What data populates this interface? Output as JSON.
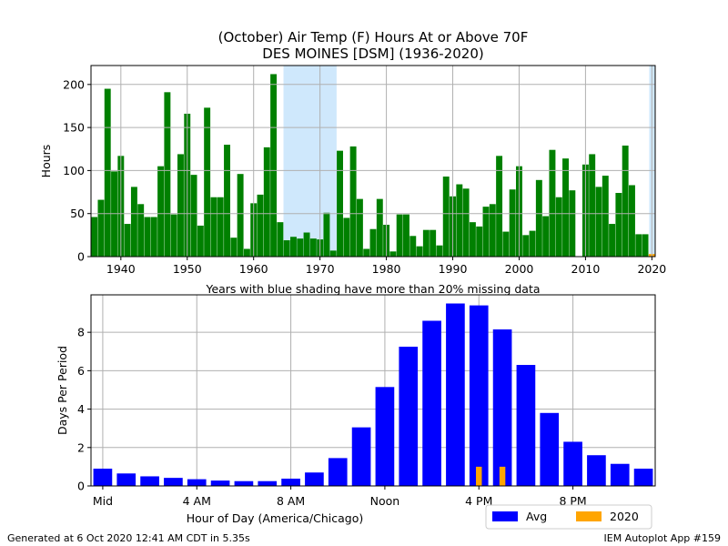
{
  "title_line1": "(October) Air Temp (F) Hours At or Above 70F",
  "title_line2": "DES MOINES [DSM] (1936-2020)",
  "footer_left": "Generated at 6 Oct 2020 12:41 AM CDT in 5.35s",
  "footer_right": "IEM Autoplot App #159",
  "colors": {
    "yearly_bar": "#008000",
    "missing_shade": "#cfe8fc",
    "avg_bar": "#0000ff",
    "current_bar": "#ffa500",
    "grid": "#b0b0b0"
  },
  "chart_data": [
    {
      "type": "bar",
      "title": "(October) Air Temp (F) Hours At or Above 70F",
      "subtitle": "DES MOINES [DSM] (1936-2020)",
      "xlabel": "Years with blue shading have more than 20% missing data",
      "ylabel": "Hours",
      "xlim": [
        1935.5,
        2020.5
      ],
      "ylim": [
        0,
        222
      ],
      "xticks": [
        1940,
        1950,
        1960,
        1970,
        1980,
        1990,
        2000,
        2010,
        2020
      ],
      "yticks": [
        0,
        50,
        100,
        150,
        200
      ],
      "grid": true,
      "missing_shading": [
        [
          1964.5,
          1972.5
        ],
        [
          2019.6,
          2020.5
        ]
      ],
      "x": [
        1936,
        1937,
        1938,
        1939,
        1940,
        1941,
        1942,
        1943,
        1944,
        1945,
        1946,
        1947,
        1948,
        1949,
        1950,
        1951,
        1952,
        1953,
        1954,
        1955,
        1956,
        1957,
        1958,
        1959,
        1960,
        1961,
        1962,
        1963,
        1964,
        1965,
        1966,
        1967,
        1968,
        1969,
        1970,
        1971,
        1972,
        1973,
        1974,
        1975,
        1976,
        1977,
        1978,
        1979,
        1980,
        1981,
        1982,
        1983,
        1984,
        1985,
        1986,
        1987,
        1988,
        1989,
        1990,
        1991,
        1992,
        1993,
        1994,
        1995,
        1996,
        1997,
        1998,
        1999,
        2000,
        2001,
        2002,
        2003,
        2004,
        2005,
        2006,
        2007,
        2008,
        2009,
        2010,
        2011,
        2012,
        2013,
        2014,
        2015,
        2016,
        2017,
        2018,
        2019,
        2020
      ],
      "values": [
        46,
        66,
        195,
        99,
        117,
        38,
        81,
        61,
        46,
        46,
        105,
        191,
        49,
        119,
        166,
        95,
        36,
        173,
        69,
        69,
        130,
        22,
        96,
        9,
        62,
        72,
        127,
        212,
        40,
        19,
        23,
        21,
        28,
        21,
        20,
        51,
        7,
        123,
        45,
        128,
        67,
        9,
        32,
        67,
        37,
        6,
        49,
        49,
        24,
        12,
        31,
        31,
        13,
        93,
        70,
        84,
        79,
        40,
        35,
        58,
        61,
        117,
        29,
        78,
        105,
        25,
        30,
        89,
        47,
        124,
        69,
        114,
        77,
        0,
        107,
        119,
        81,
        94,
        38,
        74,
        129,
        83,
        26,
        26,
        3
      ]
    },
    {
      "type": "bar",
      "xlabel": "Hour of Day (America/Chicago)",
      "ylabel": "Days Per Period",
      "xlim": [
        -0.5,
        23.5
      ],
      "ylim": [
        0,
        9.95
      ],
      "xticks": [
        {
          "hour": 0,
          "label": "Mid"
        },
        {
          "hour": 4,
          "label": "4 AM"
        },
        {
          "hour": 8,
          "label": "8 AM"
        },
        {
          "hour": 12,
          "label": "Noon"
        },
        {
          "hour": 16,
          "label": "4 PM"
        },
        {
          "hour": 20,
          "label": "8 PM"
        }
      ],
      "yticks": [
        0,
        2,
        4,
        6,
        8
      ],
      "grid": true,
      "legend": "bottom-right outside",
      "series": [
        {
          "name": "Avg",
          "x": [
            0,
            1,
            2,
            3,
            4,
            5,
            6,
            7,
            8,
            9,
            10,
            11,
            12,
            13,
            14,
            15,
            16,
            17,
            18,
            19,
            20,
            21,
            22,
            23
          ],
          "values": [
            0.9,
            0.65,
            0.5,
            0.42,
            0.35,
            0.28,
            0.25,
            0.25,
            0.38,
            0.7,
            1.45,
            3.05,
            5.15,
            7.25,
            8.6,
            9.5,
            9.4,
            8.15,
            6.3,
            3.8,
            2.3,
            1.6,
            1.15,
            0.9
          ]
        },
        {
          "name": "2020",
          "x": [
            16,
            17
          ],
          "values": [
            1,
            1
          ]
        }
      ]
    }
  ]
}
